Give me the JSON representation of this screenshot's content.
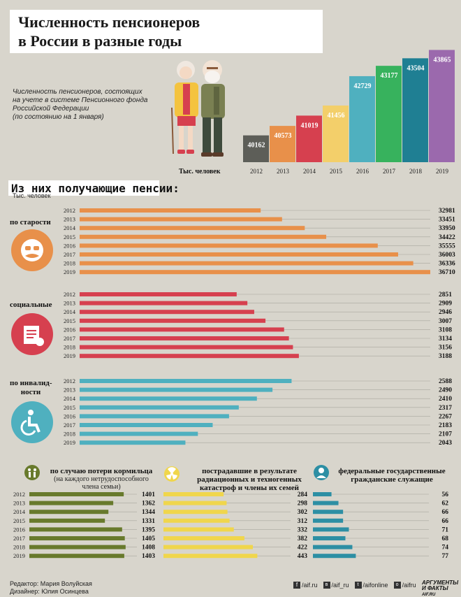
{
  "header": {
    "title_line1": "Численность пенсионеров",
    "title_line2": "в России в разные годы",
    "note_lines": [
      "Численность пенсионеров, состоящих",
      "на учете в системе Пенсионного фонда",
      "Российской Федерации",
      "(по состоянию на 1 января)"
    ],
    "unit": "Тыс. человек"
  },
  "subtitle": "Из них получающие пенсии:",
  "subtitle_unit": "Тыс. человек",
  "sections": {
    "old_age_label": "по старости",
    "social_label": "социальные",
    "disability_label_1": "по инвалид-",
    "disability_label_2": "ности",
    "breadwinner_label": "по случаю потери кормильца",
    "breadwinner_sub1": "(на каждого нетрудоспособного",
    "breadwinner_sub2": "члена семьи)",
    "radiation_label1": "пострадавшие в результате",
    "radiation_label2": "радиационных и техногенных",
    "radiation_label3": "катастроф и члены их семей",
    "civil_label1": "федеральные государственные",
    "civil_label2": "гражданские служащие"
  },
  "footer": {
    "editor": "Редактор: Мария Волуйская",
    "designer": "Дизайнер: Юлия Осинцева",
    "social": [
      "/aif.ru",
      "/aif_ru",
      "/aifonline",
      "/aifru"
    ],
    "brand1": "АРГУМЕНТЫ",
    "brand2": "И ФАКТЫ",
    "brand_site": "AIF.RU"
  },
  "colors": {
    "background": "#d8d5cc",
    "old_age": "#e8904a",
    "social": "#d6404f",
    "disability": "#4fb0bf",
    "breadwinner": "#687a2c",
    "radiation": "#f0d64c",
    "civil": "#2d8fa4"
  },
  "chart_data": [
    {
      "type": "bar",
      "categories": [
        "2012",
        "2013",
        "2014",
        "2015",
        "2016",
        "2017",
        "2018",
        "2019"
      ],
      "values": [
        40162,
        40573,
        41019,
        41456,
        42729,
        43177,
        43504,
        43865
      ],
      "bar_colors": [
        "#5d5e58",
        "#e8904a",
        "#d6404f",
        "#f3cf6a",
        "#4fb0bf",
        "#37b25d",
        "#1f7f93",
        "#9b69ad"
      ],
      "xlabel": "Тыс. человек"
    },
    {
      "type": "bar",
      "orientation": "horizontal",
      "categories": [
        "2012",
        "2013",
        "2014",
        "2015",
        "2016",
        "2017",
        "2018",
        "2019"
      ],
      "values": [
        32981,
        33451,
        33950,
        34422,
        35555,
        36003,
        36336,
        36710
      ],
      "xlim": [
        29000,
        36710
      ]
    },
    {
      "type": "bar",
      "orientation": "horizontal",
      "categories": [
        "2012",
        "2013",
        "2014",
        "2015",
        "2016",
        "2017",
        "2018",
        "2019"
      ],
      "values": [
        2851,
        2909,
        2946,
        3007,
        3108,
        3134,
        3156,
        3188
      ],
      "xlim": [
        2000,
        3900
      ]
    },
    {
      "type": "bar",
      "orientation": "horizontal",
      "categories": [
        "2012",
        "2013",
        "2014",
        "2015",
        "2016",
        "2017",
        "2018",
        "2019"
      ],
      "values": [
        2588,
        2490,
        2410,
        2317,
        2267,
        2183,
        2107,
        2043
      ],
      "xlim": [
        1500,
        3300
      ]
    },
    {
      "type": "bar",
      "orientation": "horizontal",
      "categories": [
        "2012",
        "2013",
        "2014",
        "2015",
        "2016",
        "2017",
        "2018",
        "2019"
      ],
      "values": [
        1401,
        1362,
        1344,
        1331,
        1395,
        1405,
        1408,
        1403
      ],
      "xlim": [
        1050,
        1450
      ]
    },
    {
      "type": "bar",
      "orientation": "horizontal",
      "categories": [
        "2012",
        "2013",
        "2014",
        "2015",
        "2016",
        "2017",
        "2018",
        "2019"
      ],
      "values": [
        284,
        298,
        302,
        312,
        332,
        382,
        422,
        443
      ],
      "xlim": [
        0,
        600
      ]
    },
    {
      "type": "bar",
      "orientation": "horizontal",
      "categories": [
        "2012",
        "2013",
        "2014",
        "2015",
        "2016",
        "2017",
        "2018",
        "2019"
      ],
      "values": [
        56,
        62,
        66,
        66,
        71,
        68,
        74,
        77
      ],
      "xlim": [
        40,
        140
      ]
    }
  ]
}
